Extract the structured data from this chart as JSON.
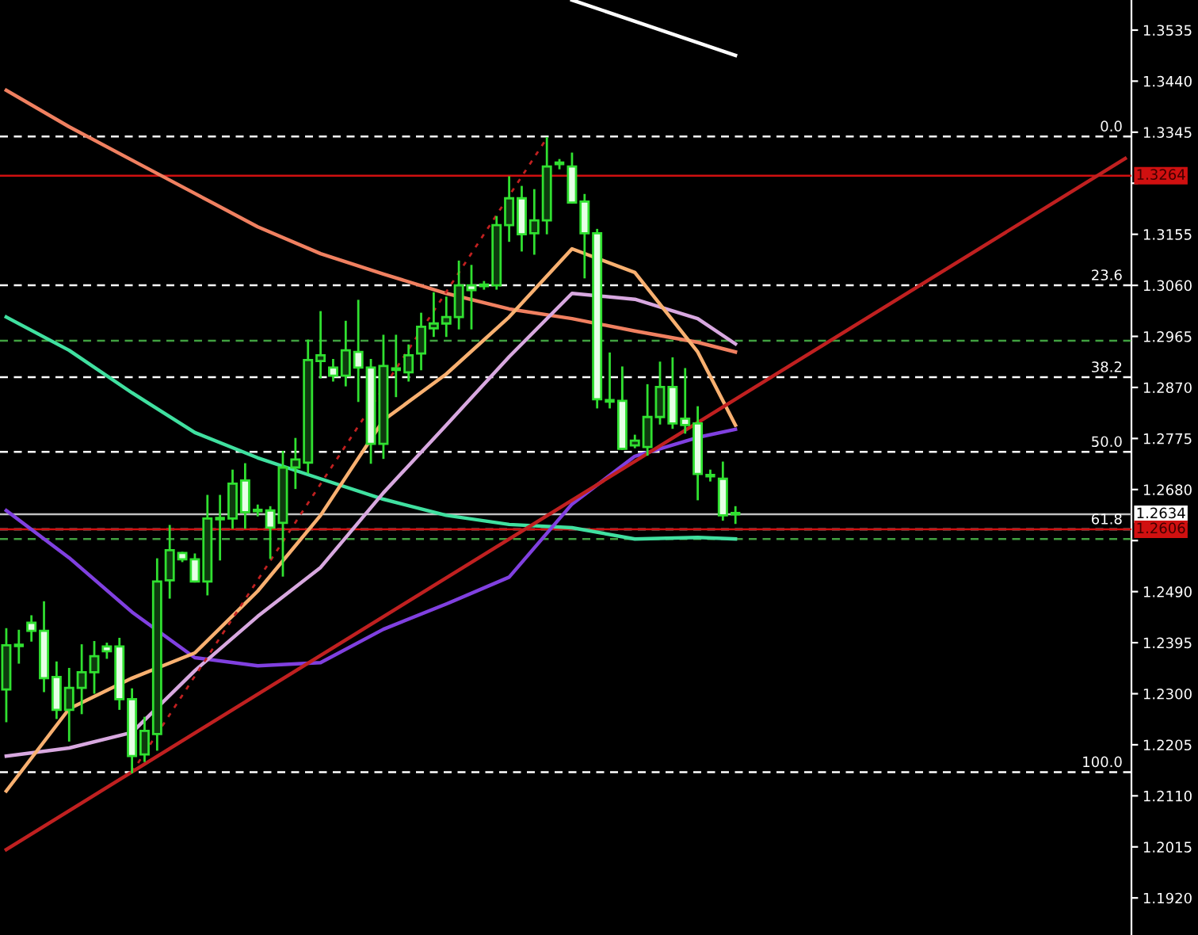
{
  "chart_data": {
    "type": "candlestick",
    "categories": [
      null,
      null,
      null,
      null,
      null,
      null,
      null,
      null,
      null,
      null,
      null,
      null,
      null,
      null,
      null,
      null,
      null,
      null,
      null,
      null,
      null,
      null,
      null,
      null,
      null,
      null,
      null,
      null,
      null,
      null,
      null,
      null,
      null,
      null,
      null,
      null,
      null,
      null,
      null,
      null,
      null,
      null,
      null,
      null,
      null,
      null,
      null,
      null,
      null,
      null,
      null,
      null,
      null,
      null,
      null,
      null,
      null,
      null,
      null,
      null,
      null,
      null,
      null,
      null,
      null,
      null,
      null,
      null,
      null,
      null,
      null,
      null,
      null,
      null,
      null,
      null,
      null,
      null,
      null,
      null,
      null,
      null,
      null,
      null,
      null,
      null,
      null,
      null,
      null,
      null
    ],
    "ohlc": [
      [
        1.2308,
        1.242,
        1.2249,
        1.239
      ],
      [
        1.239,
        1.2417,
        1.2358,
        1.239
      ],
      [
        1.2432,
        1.2444,
        1.2399,
        1.2417
      ],
      [
        1.2417,
        1.247,
        1.2305,
        1.2329
      ],
      [
        1.2331,
        1.2358,
        1.2255,
        1.227
      ],
      [
        1.227,
        1.2346,
        1.2213,
        1.2311
      ],
      [
        1.2311,
        1.239,
        1.2264,
        1.234
      ],
      [
        1.234,
        1.2396,
        1.2302,
        1.237
      ],
      [
        1.2388,
        1.2393,
        1.2367,
        1.2379
      ],
      [
        1.2388,
        1.2402,
        1.2272,
        1.229
      ],
      [
        1.229,
        1.2308,
        1.2154,
        1.2184
      ],
      [
        1.2187,
        1.2255,
        1.2175,
        1.2231
      ],
      [
        1.2225,
        1.255,
        1.2196,
        1.2509
      ],
      [
        1.2511,
        1.2612,
        1.2479,
        1.2567
      ],
      [
        1.2562,
        1.2562,
        1.2547,
        1.255
      ],
      [
        1.255,
        1.2559,
        1.2509,
        1.2509
      ],
      [
        1.2509,
        1.2668,
        1.2485,
        1.2626
      ],
      [
        1.2626,
        1.2668,
        1.255,
        1.2626
      ],
      [
        1.2626,
        1.2715,
        1.2609,
        1.2691
      ],
      [
        1.2697,
        1.2727,
        1.2609,
        1.2638
      ],
      [
        1.2641,
        1.265,
        1.2632,
        1.2641
      ],
      [
        1.2641,
        1.2647,
        1.2553,
        1.2609
      ],
      [
        1.2618,
        1.275,
        1.252,
        1.2721
      ],
      [
        1.2721,
        1.2774,
        1.2683,
        1.2736
      ],
      [
        1.273,
        1.2957,
        1.2712,
        1.2921
      ],
      [
        1.2919,
        1.301,
        1.2889,
        1.293
      ],
      [
        1.2907,
        1.2921,
        1.2883,
        1.2892
      ],
      [
        1.2892,
        1.2992,
        1.2874,
        1.2939
      ],
      [
        1.2936,
        1.3031,
        1.2845,
        1.2907
      ],
      [
        1.2907,
        1.2921,
        1.273,
        1.2765
      ],
      [
        1.2765,
        1.2966,
        1.2739,
        1.291
      ],
      [
        1.2904,
        1.2966,
        1.2854,
        1.2904
      ],
      [
        1.2898,
        1.2948,
        1.2883,
        1.293
      ],
      [
        1.2933,
        1.3007,
        1.2904,
        1.2983
      ],
      [
        1.298,
        1.3045,
        1.2966,
        1.2989
      ],
      [
        1.2989,
        1.3037,
        1.2966,
        1.3001
      ],
      [
        1.3001,
        1.3104,
        1.298,
        1.306
      ],
      [
        1.306,
        1.3096,
        1.298,
        1.3051
      ],
      [
        1.306,
        1.3066,
        1.3054,
        1.306
      ],
      [
        1.306,
        1.3187,
        1.3054,
        1.3172
      ],
      [
        1.3172,
        1.3261,
        1.3143,
        1.3222
      ],
      [
        1.3222,
        1.3243,
        1.3125,
        1.3155
      ],
      [
        1.3157,
        1.3237,
        1.3119,
        1.3181
      ],
      [
        1.3181,
        1.3334,
        1.3157,
        1.3281
      ],
      [
        1.3287,
        1.3293,
        1.3278,
        1.3287
      ],
      [
        1.3281,
        1.3305,
        1.3214,
        1.3214
      ],
      [
        1.3216,
        1.3228,
        1.3075,
        1.3157
      ],
      [
        1.3157,
        1.3163,
        1.2833,
        1.2848
      ],
      [
        1.2845,
        1.2933,
        1.2833,
        1.2845
      ],
      [
        1.2845,
        1.2907,
        1.2756,
        1.2756
      ],
      [
        1.2762,
        1.278,
        1.2759,
        1.2771
      ],
      [
        1.2759,
        1.2874,
        1.2745,
        1.2815
      ],
      [
        1.2815,
        1.2916,
        1.2803,
        1.2871
      ],
      [
        1.2871,
        1.2924,
        1.2795,
        1.2803
      ],
      [
        1.2812,
        1.2904,
        1.2786,
        1.28
      ],
      [
        1.2803,
        1.2833,
        1.2662,
        1.2709
      ],
      [
        1.2706,
        1.2715,
        1.2697,
        1.2706
      ],
      [
        1.27,
        1.273,
        1.2624,
        1.2632
      ],
      [
        1.2635,
        1.2647,
        1.2618,
        1.2635
      ],
      null,
      null,
      null,
      null,
      null,
      null,
      null,
      null,
      null,
      null,
      null,
      null,
      null,
      null,
      null,
      null,
      null,
      null,
      null,
      null,
      null,
      null,
      null,
      null,
      null,
      null,
      null,
      null,
      null,
      null,
      null
    ],
    "series": [
      {
        "type": "line",
        "color": "#f08060",
        "values": [
          1.3423,
          null,
          null,
          null,
          null,
          1.3355,
          null,
          null,
          null,
          null,
          1.3293,
          null,
          null,
          null,
          null,
          1.3231,
          null,
          null,
          null,
          null,
          1.3169,
          null,
          null,
          null,
          null,
          1.3119,
          null,
          null,
          null,
          null,
          1.3081,
          null,
          null,
          null,
          null,
          1.3045,
          null,
          null,
          null,
          null,
          1.3016,
          null,
          null,
          null,
          null,
          1.2998,
          null,
          null,
          null,
          null,
          1.2975,
          null,
          null,
          null,
          null,
          1.2954,
          null,
          null,
          1.2936,
          null,
          null,
          null,
          null,
          null,
          null,
          null,
          null,
          null,
          null,
          null,
          null,
          null,
          null,
          null,
          null,
          null,
          null,
          null,
          null,
          null,
          null,
          null,
          null,
          null,
          null,
          null,
          null,
          null,
          null,
          null
        ]
      },
      {
        "type": "line",
        "color": "#40e0a0",
        "values": [
          1.3001,
          null,
          null,
          null,
          null,
          1.2939,
          null,
          null,
          null,
          null,
          1.286,
          null,
          null,
          null,
          null,
          1.2786,
          null,
          null,
          null,
          null,
          1.2739,
          null,
          null,
          null,
          null,
          1.27,
          null,
          null,
          null,
          null,
          1.2662,
          null,
          null,
          null,
          null,
          1.2632,
          null,
          null,
          null,
          null,
          1.2615,
          null,
          null,
          null,
          null,
          1.2609,
          null,
          null,
          null,
          null,
          1.2588,
          null,
          null,
          null,
          null,
          1.2591,
          null,
          null,
          1.2588,
          null,
          null,
          null,
          null,
          null,
          null,
          null,
          null,
          null,
          null,
          null,
          null,
          null,
          null,
          null,
          null,
          null,
          null,
          null,
          null,
          null,
          null,
          null,
          null,
          null,
          null,
          null,
          null,
          null,
          null,
          null
        ]
      },
      {
        "type": "line",
        "color": "#8040e0",
        "values": [
          1.2641,
          null,
          null,
          null,
          null,
          1.2553,
          null,
          null,
          null,
          null,
          1.2452,
          null,
          null,
          null,
          null,
          1.2367,
          null,
          null,
          null,
          null,
          1.2352,
          null,
          null,
          null,
          null,
          1.2358,
          null,
          null,
          null,
          null,
          1.242,
          null,
          null,
          null,
          null,
          1.2467,
          null,
          null,
          null,
          null,
          1.2517,
          null,
          null,
          null,
          null,
          1.2653,
          null,
          null,
          null,
          null,
          1.2742,
          null,
          null,
          null,
          null,
          1.2777,
          null,
          null,
          1.2792,
          null,
          null,
          null,
          null,
          null,
          null,
          null,
          null,
          null,
          null,
          null,
          null,
          null,
          null,
          null,
          null,
          null,
          null,
          null,
          null,
          null,
          null,
          null,
          null,
          null,
          null,
          null,
          null,
          null,
          null,
          null
        ]
      },
      {
        "type": "line",
        "color": "#d8a8e0",
        "values": [
          1.2184,
          null,
          null,
          null,
          null,
          1.2199,
          null,
          null,
          null,
          null,
          1.2228,
          null,
          null,
          null,
          null,
          1.2343,
          null,
          null,
          null,
          null,
          1.2444,
          null,
          null,
          null,
          null,
          1.2535,
          null,
          null,
          null,
          null,
          1.2674,
          null,
          null,
          null,
          null,
          1.28,
          null,
          null,
          null,
          null,
          1.2927,
          null,
          null,
          null,
          null,
          1.3045,
          null,
          null,
          null,
          null,
          1.3034,
          null,
          null,
          null,
          null,
          1.2998,
          null,
          null,
          1.2951,
          null,
          null,
          null,
          null,
          null,
          null,
          null,
          null,
          null,
          null,
          null,
          null,
          null,
          null,
          null,
          null,
          null,
          null,
          null,
          null,
          null,
          null,
          null,
          null,
          null,
          null,
          null,
          null,
          null,
          null,
          null
        ]
      },
      {
        "type": "line",
        "color": "#f8b070",
        "values": [
          1.2119,
          null,
          null,
          null,
          null,
          1.2272,
          null,
          null,
          null,
          null,
          1.2329,
          null,
          null,
          null,
          null,
          1.2376,
          null,
          null,
          null,
          null,
          1.2491,
          null,
          null,
          null,
          null,
          1.2632,
          null,
          null,
          null,
          null,
          1.2809,
          null,
          null,
          null,
          null,
          1.2895,
          null,
          null,
          null,
          null,
          1.3001,
          null,
          null,
          null,
          null,
          1.3128,
          null,
          null,
          null,
          null,
          1.3084,
          null,
          null,
          null,
          null,
          1.2936,
          null,
          null,
          1.28,
          null,
          null,
          null,
          null,
          null,
          null,
          null,
          null,
          null,
          null,
          null,
          null,
          null,
          null,
          null,
          null,
          null,
          null,
          null,
          null,
          null,
          null,
          null,
          null,
          null,
          null,
          null,
          null,
          null,
          null,
          null
        ]
      },
      {
        "type": "line",
        "color": "#ffffff",
        "values": [
          null,
          null,
          null,
          null,
          null,
          null,
          null,
          null,
          null,
          null,
          null,
          null,
          null,
          null,
          null,
          null,
          null,
          null,
          null,
          null,
          null,
          null,
          null,
          null,
          null,
          null,
          null,
          null,
          null,
          null,
          null,
          null,
          null,
          null,
          null,
          null,
          null,
          null,
          null,
          null,
          null,
          null,
          null,
          null,
          null,
          1.3591,
          null,
          null,
          null,
          null,
          null,
          null,
          null,
          null,
          null,
          null,
          null,
          null,
          1.3488,
          null,
          null,
          null,
          null,
          null,
          null,
          null,
          null,
          null,
          null,
          null,
          null,
          null,
          null,
          null,
          null,
          null,
          null,
          null,
          null,
          null,
          null,
          null,
          null,
          null,
          null,
          null,
          null,
          null,
          null,
          null
        ]
      },
      {
        "type": "line",
        "color": "#c02020",
        "values": [
          1.201,
          null,
          null,
          null,
          null,
          null,
          null,
          null,
          null,
          null,
          null,
          null,
          null,
          null,
          null,
          null,
          null,
          null,
          null,
          null,
          null,
          null,
          null,
          null,
          null,
          null,
          null,
          null,
          null,
          null,
          null,
          null,
          null,
          null,
          null,
          null,
          null,
          null,
          null,
          null,
          null,
          null,
          null,
          null,
          null,
          null,
          null,
          null,
          null,
          null,
          null,
          null,
          null,
          null,
          null,
          null,
          null,
          null,
          1.2848,
          null,
          null,
          null,
          null,
          null,
          null,
          null,
          null,
          null,
          null,
          null,
          null,
          null,
          null,
          null,
          null,
          null,
          null,
          null,
          null,
          null,
          null,
          null,
          null,
          null,
          null,
          null,
          null,
          null,
          null,
          1.3296
        ]
      },
      {
        "type": "line",
        "color": "#c02020",
        "line_style": "dotted",
        "values": [
          null,
          null,
          null,
          null,
          null,
          null,
          null,
          null,
          null,
          null,
          1.2154,
          null,
          null,
          null,
          null,
          null,
          null,
          null,
          null,
          null,
          null,
          null,
          null,
          null,
          null,
          null,
          null,
          null,
          null,
          null,
          null,
          null,
          null,
          null,
          null,
          null,
          null,
          null,
          null,
          null,
          null,
          null,
          null,
          1.3334,
          null,
          null,
          null,
          null,
          null,
          null,
          null,
          null,
          null,
          null,
          null,
          null,
          null,
          null,
          null,
          null,
          null,
          null,
          null,
          null,
          null,
          null,
          null,
          null,
          null,
          null,
          null,
          null,
          null,
          null,
          null,
          null,
          null,
          null,
          null,
          null,
          null,
          null,
          null,
          null,
          null,
          null,
          null,
          null,
          null,
          null
        ]
      }
    ],
    "ref_lines": [
      {
        "axis": "y",
        "value": 1.3337,
        "color": "#ffffff",
        "line_style": "dashed"
      },
      {
        "axis": "y",
        "value": 1.306,
        "color": "#ffffff",
        "line_style": "dashed"
      },
      {
        "axis": "y",
        "value": 1.2889,
        "color": "#ffffff",
        "line_style": "dashed"
      },
      {
        "axis": "y",
        "value": 1.275,
        "color": "#ffffff",
        "line_style": "dashed"
      },
      {
        "axis": "y",
        "value": 1.2606,
        "color": "#ffffff",
        "line_style": "dashed"
      },
      {
        "axis": "y",
        "value": 1.2154,
        "color": "#ffffff",
        "line_style": "dashed"
      },
      {
        "axis": "y",
        "value": 1.2957,
        "color": "#40a040",
        "line_style": "dashed"
      },
      {
        "axis": "y",
        "value": 1.2588,
        "color": "#40a040",
        "line_style": "dashed"
      },
      {
        "axis": "y",
        "value": 1.3264,
        "label": "1.3264",
        "color": "#d01010",
        "line_style": "solid"
      },
      {
        "axis": "y",
        "value": 1.2634,
        "label": "1.2634",
        "color": "#c0c0c0",
        "line_style": "solid"
      },
      {
        "axis": "y",
        "value": 1.2606,
        "label": "1.2606",
        "color": "#d01010",
        "line_style": "solid"
      }
    ],
    "annotations": [
      {
        "text": "0.0",
        "y": 1.3337
      },
      {
        "text": "23.6",
        "y": 1.306
      },
      {
        "text": "38.2",
        "y": 1.2889
      },
      {
        "text": "50.0",
        "y": 1.275
      },
      {
        "text": "61.8",
        "y": 1.2606
      },
      {
        "text": "100.0",
        "y": 1.2154
      }
    ],
    "ylim": [
      1.1851,
      1.3591
    ],
    "yticks": [
      1.3535,
      {
        "value": 1.344,
        "label": "1.3440"
      },
      1.3345,
      {
        "value": 1.325,
        "label": null
      },
      1.3155,
      {
        "value": 1.306,
        "label": "1.3060"
      },
      1.2965,
      {
        "value": 1.287,
        "label": "1.2870"
      },
      1.2775,
      {
        "value": 1.268,
        "label": "1.2680"
      },
      {
        "value": 1.2585,
        "label": null
      },
      {
        "value": 1.249,
        "label": "1.2490"
      },
      1.2395,
      {
        "value": 1.23,
        "label": "1.2300"
      },
      1.2205,
      {
        "value": 1.211,
        "label": "1.2110"
      },
      1.2015,
      {
        "value": 1.192,
        "label": "1.1920"
      }
    ],
    "tick_labels": "y",
    "grid": false,
    "legend": false
  }
}
